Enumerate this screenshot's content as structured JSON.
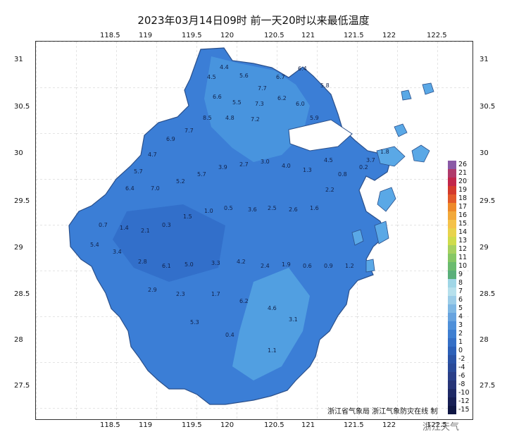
{
  "title": "2023年03月14日09时 前一天20时以来最低温度",
  "axes": {
    "x_ticks": [
      "118.5",
      "119",
      "119.5",
      "120",
      "120.5",
      "121",
      "121.5",
      "122",
      "122.5"
    ],
    "y_ticks": [
      "31",
      "30.5",
      "30",
      "29.5",
      "29",
      "28.5",
      "28",
      "27.5"
    ]
  },
  "legend": {
    "values": [
      "26",
      "21",
      "20",
      "19",
      "18",
      "17",
      "16",
      "15",
      "14",
      "13",
      "12",
      "11",
      "10",
      "9",
      "8",
      "7",
      "6",
      "5",
      "4",
      "3",
      "2",
      "1",
      "0",
      "-2",
      "-4",
      "-6",
      "-8",
      "-10",
      "-12",
      "-15"
    ],
    "colors": [
      "#8a5aa6",
      "#b03a6b",
      "#c2264a",
      "#d43a2c",
      "#e35a2a",
      "#ee8a2a",
      "#f2a93a",
      "#f4c24a",
      "#e8d34d",
      "#cfdc4c",
      "#a7d160",
      "#86c765",
      "#6bbb6f",
      "#5aaf7a",
      "#9fd6e6",
      "#b6e0ec",
      "#9ccde8",
      "#7fb8e4",
      "#67a3df",
      "#4f90d9",
      "#3f7fd1",
      "#356fc6",
      "#2c60b8",
      "#2a53a6",
      "#2a4a98",
      "#2a3f88",
      "#273577",
      "#1f2a66",
      "#171f55",
      "#0f1644"
    ]
  },
  "credit": "浙江省气象局 浙江气象防灾在线 制",
  "watermark": "浙江天气",
  "station_labels": [
    "6.4",
    "5.8",
    "6.7",
    "7.7",
    "5.6",
    "4.4",
    "4.5",
    "6.6",
    "5.5",
    "7.3",
    "6.2",
    "6.0",
    "5.9",
    "7.2",
    "4.8",
    "8.5",
    "7.7",
    "6.9",
    "4.7",
    "5.7",
    "6.4",
    "7.0",
    "5.2",
    "5.7",
    "3.9",
    "2.7",
    "3.0",
    "4.0",
    "1.3",
    "4.5",
    "0.8",
    "0.2",
    "3.7",
    "1.8",
    "2.2",
    "1.6",
    "2.6",
    "2.5",
    "3.6",
    "0.5",
    "1.0",
    "1.5",
    "0.3",
    "2.1",
    "1.4",
    "0.7",
    "5.4",
    "3.4",
    "2.8",
    "6.1",
    "5.0",
    "3.3",
    "4.2",
    "2.4",
    "1.9",
    "0.6",
    "0.9",
    "1.2",
    "2.9",
    "2.3",
    "1.7",
    "6.2",
    "4.6",
    "3.1",
    "5.3",
    "0.4",
    "1.1"
  ]
}
